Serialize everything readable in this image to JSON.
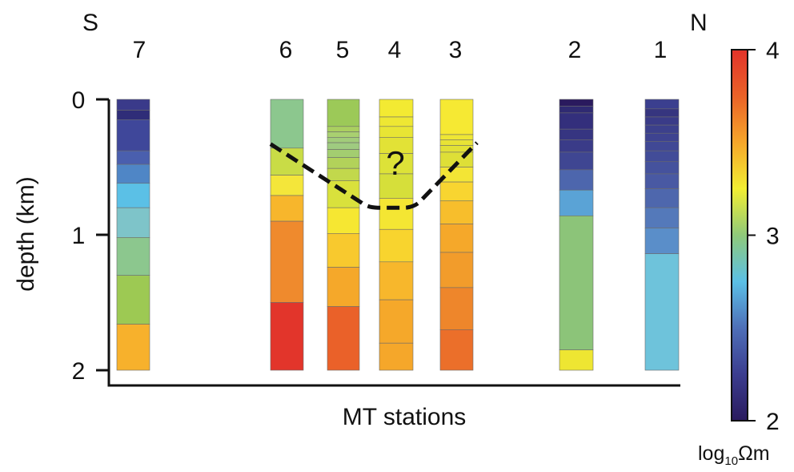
{
  "chart_data": {
    "type": "heatmap",
    "title": "",
    "xlabel": "MT stations",
    "ylabel": "depth (km)",
    "ylim": [
      0,
      2
    ],
    "yticks": [
      {
        "value": 0,
        "label": "0"
      },
      {
        "value": 1,
        "label": "1"
      },
      {
        "value": 2,
        "label": "2"
      }
    ],
    "direction_labels": {
      "left": "S",
      "right": "N"
    },
    "annotation": "?",
    "interface_depths_km": [
      0.33,
      0.8,
      0.8,
      0.32
    ],
    "colorbar": {
      "label_prefix": "log",
      "label_sub": "10",
      "label_suffix": "Ωm",
      "min": 2,
      "max": 4,
      "ticks": [
        {
          "value": 4,
          "label": "4"
        },
        {
          "value": 3,
          "label": "3"
        },
        {
          "value": 2,
          "label": "2"
        }
      ],
      "stops": [
        "#2a1a5e",
        "#3b3d8f",
        "#4e6fb8",
        "#5bc0e6",
        "#8fc97a",
        "#f2ee32",
        "#f6a62a",
        "#ea6228",
        "#e2332a"
      ]
    },
    "stations": [
      {
        "label": "7",
        "layers": [
          {
            "top": 0,
            "bottom": 0.08,
            "color": "#3a3a8a"
          },
          {
            "top": 0.08,
            "bottom": 0.15,
            "color": "#2f2d78"
          },
          {
            "top": 0.15,
            "bottom": 0.38,
            "color": "#3f479a"
          },
          {
            "top": 0.38,
            "bottom": 0.48,
            "color": "#4a5fae"
          },
          {
            "top": 0.48,
            "bottom": 0.62,
            "color": "#4f86c6"
          },
          {
            "top": 0.62,
            "bottom": 0.8,
            "color": "#5bc0e6"
          },
          {
            "top": 0.8,
            "bottom": 1.02,
            "color": "#7ec4c9"
          },
          {
            "top": 1.02,
            "bottom": 1.3,
            "color": "#8cc78e"
          },
          {
            "top": 1.3,
            "bottom": 1.66,
            "color": "#9dc953"
          },
          {
            "top": 1.66,
            "bottom": 2.0,
            "color": "#f7b12c"
          }
        ]
      },
      {
        "label": "6",
        "layers": [
          {
            "top": 0,
            "bottom": 0.36,
            "color": "#8cc78e"
          },
          {
            "top": 0.36,
            "bottom": 0.56,
            "color": "#c9dc46"
          },
          {
            "top": 0.56,
            "bottom": 0.71,
            "color": "#f4e63a"
          },
          {
            "top": 0.71,
            "bottom": 0.9,
            "color": "#f7b62c"
          },
          {
            "top": 0.9,
            "bottom": 1.5,
            "color": "#ef8a2d"
          },
          {
            "top": 1.5,
            "bottom": 2.0,
            "color": "#e2352b"
          }
        ]
      },
      {
        "label": "5",
        "layers": [
          {
            "top": 0,
            "bottom": 0.2,
            "color": "#9cc958"
          },
          {
            "top": 0.2,
            "bottom": 0.24,
            "color": "#aacf60"
          },
          {
            "top": 0.24,
            "bottom": 0.28,
            "color": "#a9d070"
          },
          {
            "top": 0.28,
            "bottom": 0.32,
            "color": "#a2cc7a"
          },
          {
            "top": 0.32,
            "bottom": 0.37,
            "color": "#9fcb80"
          },
          {
            "top": 0.37,
            "bottom": 0.43,
            "color": "#a3cd70"
          },
          {
            "top": 0.43,
            "bottom": 0.51,
            "color": "#b2d25a"
          },
          {
            "top": 0.51,
            "bottom": 0.6,
            "color": "#c2d84c"
          },
          {
            "top": 0.6,
            "bottom": 0.8,
            "color": "#d9e13c"
          },
          {
            "top": 0.8,
            "bottom": 0.99,
            "color": "#f6e732"
          },
          {
            "top": 0.99,
            "bottom": 1.24,
            "color": "#f8c92e"
          },
          {
            "top": 1.24,
            "bottom": 1.53,
            "color": "#f5a82a"
          },
          {
            "top": 1.53,
            "bottom": 2.0,
            "color": "#ea6129"
          }
        ]
      },
      {
        "label": "4",
        "layers": [
          {
            "top": 0,
            "bottom": 0.13,
            "color": "#f3ea32"
          },
          {
            "top": 0.13,
            "bottom": 0.2,
            "color": "#eee733"
          },
          {
            "top": 0.2,
            "bottom": 0.28,
            "color": "#e8e534"
          },
          {
            "top": 0.28,
            "bottom": 0.4,
            "color": "#e2e236"
          },
          {
            "top": 0.4,
            "bottom": 0.55,
            "color": "#dde238"
          },
          {
            "top": 0.55,
            "bottom": 0.73,
            "color": "#d6df3a"
          },
          {
            "top": 0.73,
            "bottom": 0.96,
            "color": "#f4e633"
          },
          {
            "top": 0.96,
            "bottom": 1.2,
            "color": "#f8d42e"
          },
          {
            "top": 1.2,
            "bottom": 1.48,
            "color": "#f7b72c"
          },
          {
            "top": 1.48,
            "bottom": 1.8,
            "color": "#f5a82a"
          },
          {
            "top": 1.8,
            "bottom": 2.0,
            "color": "#f5a72a"
          }
        ]
      },
      {
        "label": "3",
        "layers": [
          {
            "top": 0,
            "bottom": 0.26,
            "color": "#f6e933"
          },
          {
            "top": 0.26,
            "bottom": 0.3,
            "color": "#eee634"
          },
          {
            "top": 0.3,
            "bottom": 0.34,
            "color": "#e8e335"
          },
          {
            "top": 0.34,
            "bottom": 0.39,
            "color": "#e2e136"
          },
          {
            "top": 0.39,
            "bottom": 0.5,
            "color": "#dedf37"
          },
          {
            "top": 0.5,
            "bottom": 0.61,
            "color": "#f3e535"
          },
          {
            "top": 0.61,
            "bottom": 0.75,
            "color": "#f8d530"
          },
          {
            "top": 0.75,
            "bottom": 0.92,
            "color": "#f7be2c"
          },
          {
            "top": 0.92,
            "bottom": 1.13,
            "color": "#f5a82a"
          },
          {
            "top": 1.13,
            "bottom": 1.39,
            "color": "#f29c2b"
          },
          {
            "top": 1.39,
            "bottom": 1.7,
            "color": "#ee862b"
          },
          {
            "top": 1.7,
            "bottom": 2.0,
            "color": "#eb6f2a"
          }
        ]
      },
      {
        "label": "2",
        "layers": [
          {
            "top": 0,
            "bottom": 0.05,
            "color": "#2a1a5e"
          },
          {
            "top": 0.05,
            "bottom": 0.1,
            "color": "#2f2a72"
          },
          {
            "top": 0.1,
            "bottom": 0.22,
            "color": "#332f7c"
          },
          {
            "top": 0.22,
            "bottom": 0.3,
            "color": "#363581"
          },
          {
            "top": 0.3,
            "bottom": 0.39,
            "color": "#3a3b88"
          },
          {
            "top": 0.39,
            "bottom": 0.52,
            "color": "#3f4692"
          },
          {
            "top": 0.52,
            "bottom": 0.67,
            "color": "#4d66ad"
          },
          {
            "top": 0.67,
            "bottom": 0.86,
            "color": "#5aa3d6"
          },
          {
            "top": 0.86,
            "bottom": 1.85,
            "color": "#8cc479"
          },
          {
            "top": 1.85,
            "bottom": 2.0,
            "color": "#eee632"
          }
        ]
      },
      {
        "label": "1",
        "layers": [
          {
            "top": 0,
            "bottom": 0.07,
            "color": "#3b3f8f"
          },
          {
            "top": 0.07,
            "bottom": 0.13,
            "color": "#36357f"
          },
          {
            "top": 0.13,
            "bottom": 0.19,
            "color": "#3a3b88"
          },
          {
            "top": 0.19,
            "bottom": 0.25,
            "color": "#3c408c"
          },
          {
            "top": 0.25,
            "bottom": 0.31,
            "color": "#3e4390"
          },
          {
            "top": 0.31,
            "bottom": 0.38,
            "color": "#404895"
          },
          {
            "top": 0.38,
            "bottom": 0.46,
            "color": "#424c98"
          },
          {
            "top": 0.46,
            "bottom": 0.55,
            "color": "#45529d"
          },
          {
            "top": 0.55,
            "bottom": 0.66,
            "color": "#4959a3"
          },
          {
            "top": 0.66,
            "bottom": 0.8,
            "color": "#4e67ad"
          },
          {
            "top": 0.8,
            "bottom": 0.95,
            "color": "#5479ba"
          },
          {
            "top": 0.95,
            "bottom": 1.14,
            "color": "#5a8ec9"
          },
          {
            "top": 1.14,
            "bottom": 2.0,
            "color": "#6ec3db"
          }
        ]
      }
    ]
  }
}
